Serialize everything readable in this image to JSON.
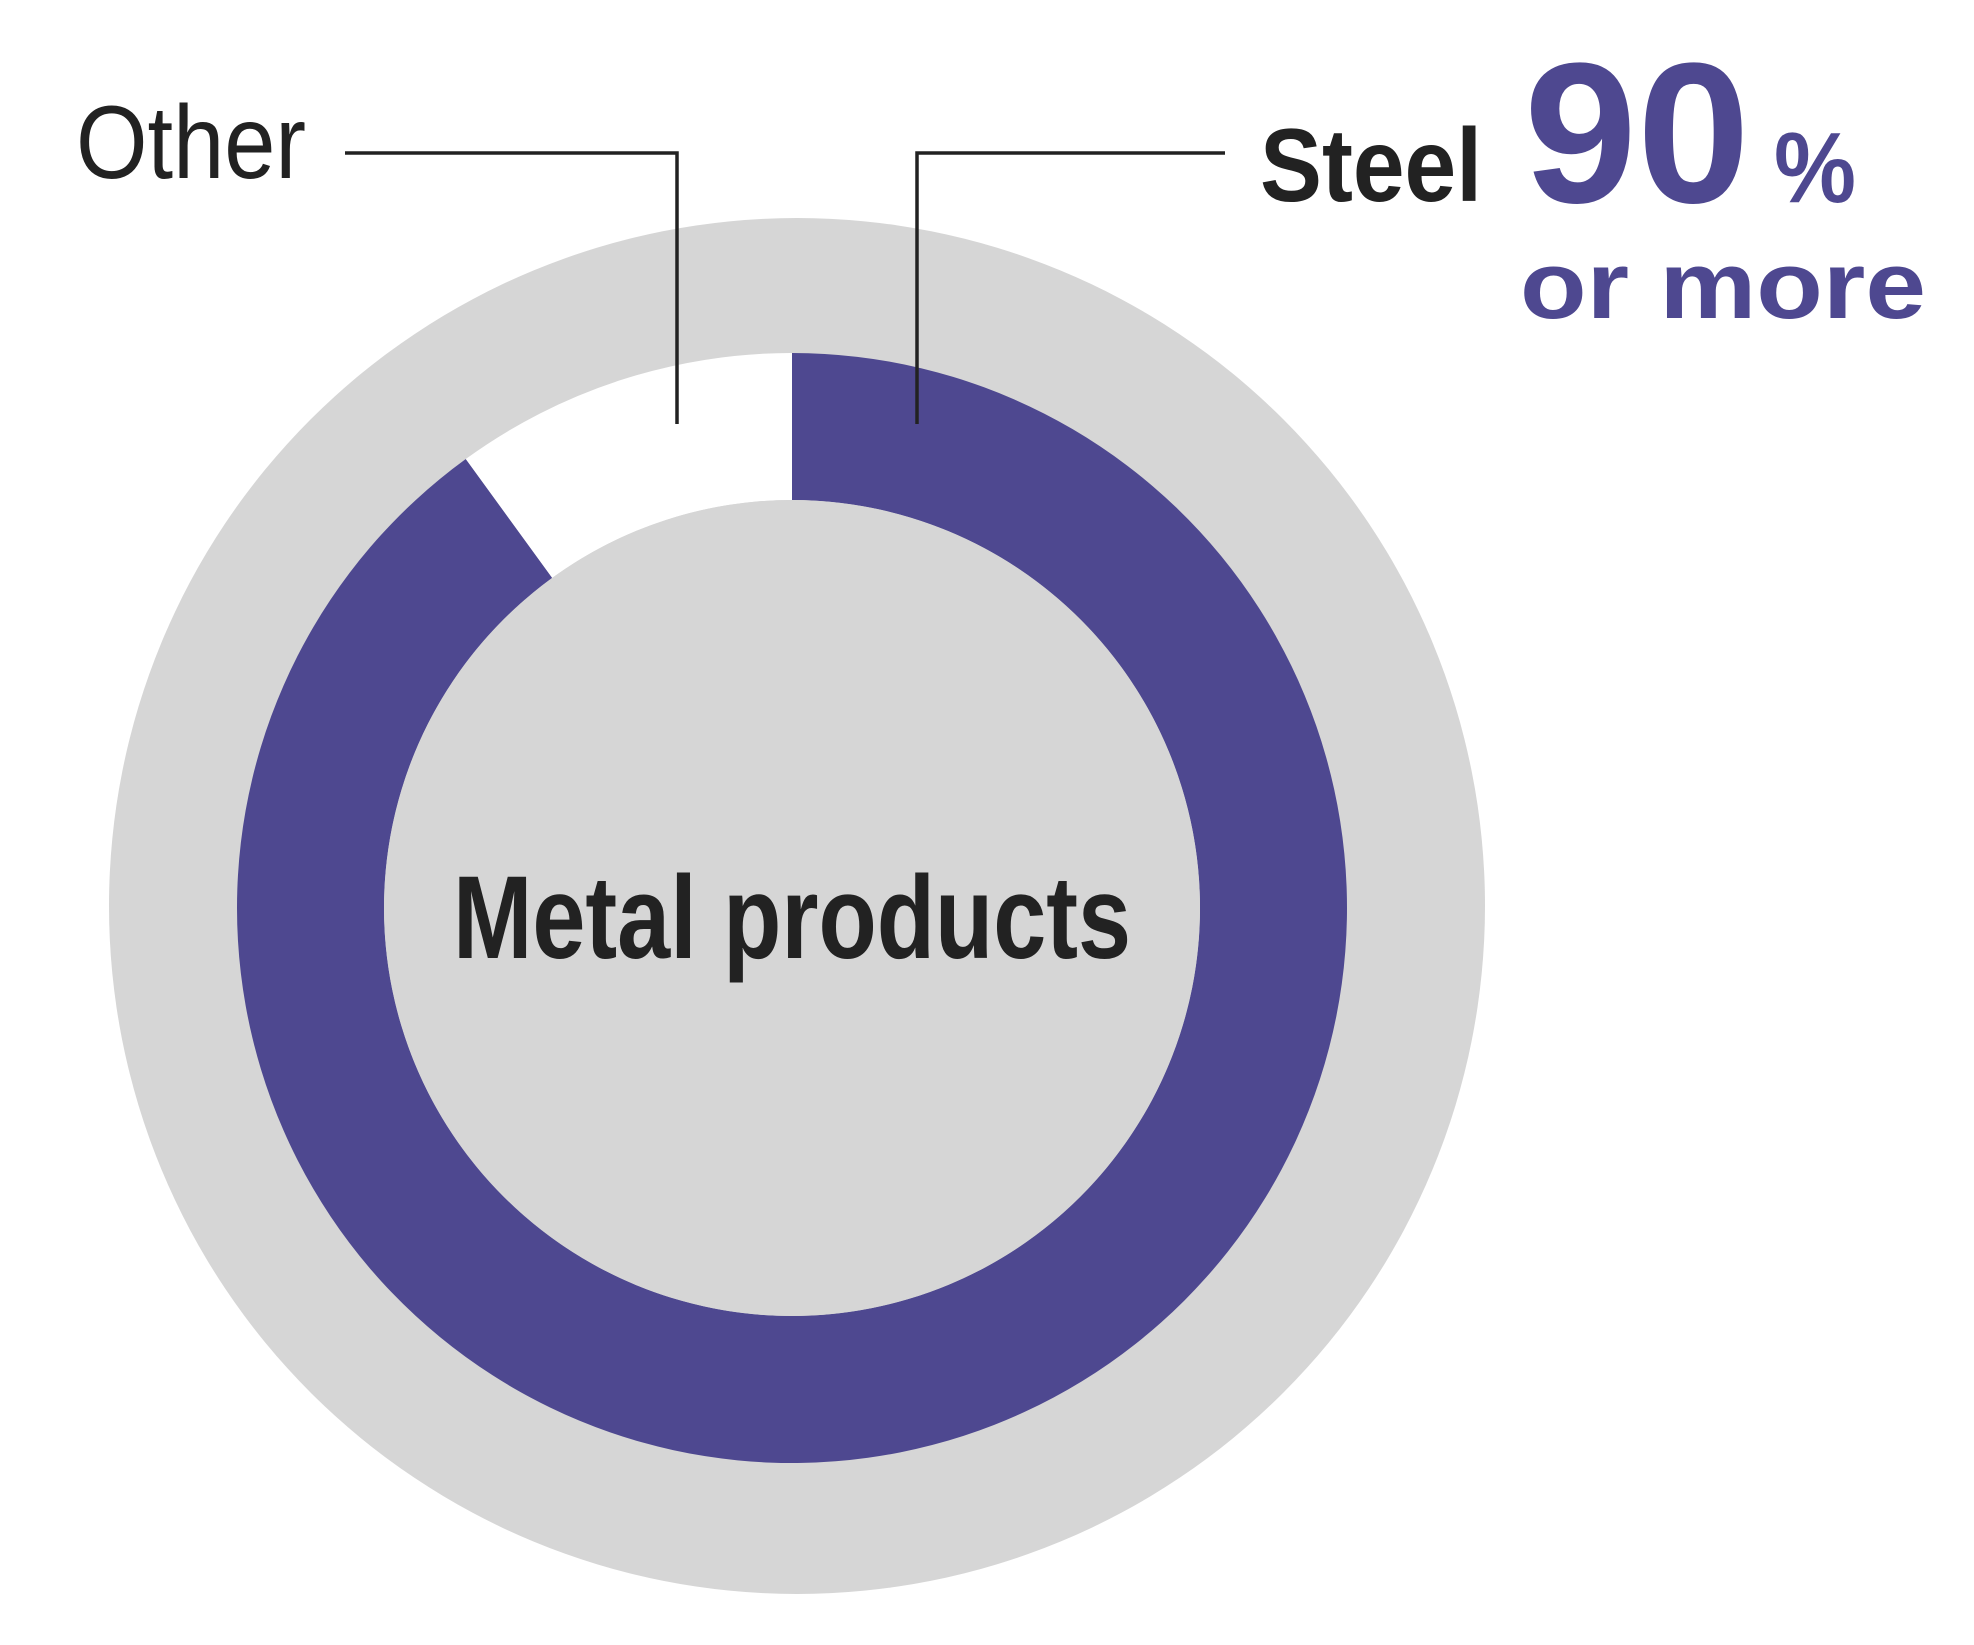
{
  "chart_data": {
    "type": "pie",
    "categories": [
      "Steel",
      "Other"
    ],
    "values": [
      90,
      10
    ],
    "value_labels": [
      "90",
      null
    ],
    "value_suffix": "%",
    "value_note": "or more",
    "colors": [
      "#4e4890",
      "#ffffff"
    ],
    "center_label": "Metal products"
  }
}
